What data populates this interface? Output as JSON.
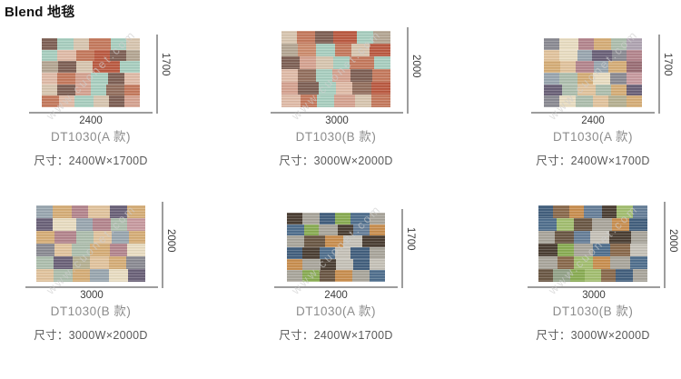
{
  "page": {
    "title": "Blend 地毯",
    "watermark": "www.cuonet.com",
    "background": "#ffffff",
    "line_color": "#9d9d9d"
  },
  "palettes": {
    "warm": [
      "#a9cfc0",
      "#8cc2af",
      "#c57a5e",
      "#bb5b42",
      "#cd8d6f",
      "#d6a391",
      "#e0bca8",
      "#d8c6b0",
      "#c4ab92",
      "#7f6156",
      "#94705f",
      "#b5a794"
    ],
    "muted": [
      "#e9ddc2",
      "#d6ae78",
      "#e2c49e",
      "#b4868e",
      "#9b6f76",
      "#aebfae",
      "#9aa7b0",
      "#8b8b93",
      "#6b6279",
      "#b0a4b2",
      "#b6b192",
      "#c89ba0"
    ],
    "forest": [
      "#8aad54",
      "#a3bf71",
      "#51708e",
      "#677f99",
      "#43607e",
      "#6b5845",
      "#4c3f34",
      "#8a6a4d",
      "#c98f50",
      "#aaa69c",
      "#c6c2b8",
      "#93a289"
    ]
  },
  "products": [
    {
      "name": "DT1030(A 款)",
      "size_label": "尺寸：2400W×1700D",
      "width_label": "2400",
      "height_label": "1700",
      "variant": "A",
      "palette": "warm",
      "pattern": [
        [
          [
            9,
            1
          ],
          [
            0,
            1.1
          ],
          [
            7,
            1
          ],
          [
            2,
            1.4
          ],
          [
            0,
            1
          ],
          [
            7,
            0.9
          ]
        ],
        [
          [
            0,
            1
          ],
          [
            6,
            1.2
          ],
          [
            2,
            1.2
          ],
          [
            3,
            1
          ],
          [
            9,
            1
          ],
          [
            11,
            0.9
          ]
        ],
        [
          [
            11,
            1
          ],
          [
            9,
            1.1
          ],
          [
            7,
            1
          ],
          [
            3,
            1.7
          ],
          [
            0,
            1.2
          ]
        ],
        [
          [
            6,
            1
          ],
          [
            2,
            1.1
          ],
          [
            5,
            1
          ],
          [
            0,
            1.1
          ],
          [
            9,
            1
          ],
          [
            6,
            1
          ]
        ],
        [
          [
            7,
            1
          ],
          [
            9,
            1.2
          ],
          [
            5,
            1
          ],
          [
            0,
            1
          ],
          [
            10,
            1.2
          ],
          [
            2,
            1
          ]
        ],
        [
          [
            2,
            1.1
          ],
          [
            6,
            1
          ],
          [
            0,
            1.2
          ],
          [
            7,
            1
          ],
          [
            9,
            1
          ],
          [
            5,
            1
          ]
        ]
      ]
    },
    {
      "name": "DT1030(B 款)",
      "size_label": "尺寸：3000W×2000D",
      "width_label": "3000",
      "height_label": "2000",
      "variant": "B",
      "palette": "warm",
      "pattern": [
        [
          [
            7,
            1
          ],
          [
            2,
            1.1
          ],
          [
            9,
            1.2
          ],
          [
            3,
            1.5
          ],
          [
            0,
            1
          ],
          [
            11,
            1.1
          ]
        ],
        [
          [
            11,
            1
          ],
          [
            4,
            1.1
          ],
          [
            0,
            1.2
          ],
          [
            2,
            1
          ],
          [
            7,
            1.1
          ],
          [
            3,
            1.3
          ]
        ],
        [
          [
            9,
            1.1
          ],
          [
            5,
            1
          ],
          [
            7,
            1.1
          ],
          [
            0,
            1
          ],
          [
            2,
            1.5
          ],
          [
            0,
            1
          ]
        ],
        [
          [
            6,
            1
          ],
          [
            10,
            1.1
          ],
          [
            0,
            1
          ],
          [
            5,
            1.1
          ],
          [
            9,
            1.3
          ],
          [
            2,
            1.1
          ]
        ],
        [
          [
            5,
            1
          ],
          [
            9,
            1.3
          ],
          [
            0,
            1.1
          ],
          [
            6,
            1
          ],
          [
            10,
            1.2
          ],
          [
            3,
            1.2
          ]
        ],
        [
          [
            6,
            1.1
          ],
          [
            2,
            1
          ],
          [
            0,
            1
          ],
          [
            5,
            1.2
          ],
          [
            7,
            1
          ],
          [
            2,
            1.1
          ]
        ]
      ]
    },
    {
      "name": "DT1030(A 款)",
      "size_label": "尺寸：2400W×1700D",
      "width_label": "2400",
      "height_label": "1700",
      "variant": "A",
      "palette": "muted",
      "pattern": [
        [
          [
            7,
            1
          ],
          [
            0,
            1.2
          ],
          [
            3,
            1
          ],
          [
            1,
            1.1
          ],
          [
            5,
            1
          ],
          [
            9,
            1
          ]
        ],
        [
          [
            2,
            1
          ],
          [
            0,
            1.2
          ],
          [
            6,
            1
          ],
          [
            8,
            1.3
          ],
          [
            7,
            1
          ],
          [
            3,
            1
          ]
        ],
        [
          [
            1,
            1.1
          ],
          [
            2,
            1
          ],
          [
            3,
            1.2
          ],
          [
            6,
            1
          ],
          [
            1,
            1.2
          ],
          [
            4,
            1
          ]
        ],
        [
          [
            6,
            1
          ],
          [
            5,
            1.1
          ],
          [
            1,
            1
          ],
          [
            0,
            1.1
          ],
          [
            7,
            1
          ],
          [
            11,
            1
          ]
        ],
        [
          [
            8,
            1.2
          ],
          [
            5,
            1
          ],
          [
            2,
            1.2
          ],
          [
            5,
            1
          ],
          [
            1,
            1
          ],
          [
            8,
            1
          ]
        ],
        [
          [
            7,
            1
          ],
          [
            0,
            1.1
          ],
          [
            5,
            1.1
          ],
          [
            2,
            1
          ],
          [
            10,
            1.2
          ],
          [
            1,
            1
          ]
        ]
      ]
    },
    {
      "name": "DT1030(B 款)",
      "size_label": "尺寸：3000W×2000D",
      "width_label": "3000",
      "height_label": "2000",
      "variant": "B",
      "palette": "muted",
      "pattern": [
        [
          [
            6,
            1
          ],
          [
            1,
            1.1
          ],
          [
            3,
            1
          ],
          [
            2,
            1.3
          ],
          [
            8,
            1
          ],
          [
            1,
            1.1
          ]
        ],
        [
          [
            8,
            1
          ],
          [
            0,
            1.4
          ],
          [
            6,
            1
          ],
          [
            3,
            1.1
          ],
          [
            5,
            1
          ],
          [
            11,
            1.1
          ]
        ],
        [
          [
            1,
            1.1
          ],
          [
            3,
            1.3
          ],
          [
            5,
            1
          ],
          [
            2,
            1.1
          ],
          [
            6,
            1
          ],
          [
            1,
            1
          ]
        ],
        [
          [
            7,
            1.1
          ],
          [
            2,
            1
          ],
          [
            5,
            1.1
          ],
          [
            1,
            1.2
          ],
          [
            3,
            1
          ],
          [
            0,
            1.1
          ]
        ],
        [
          [
            5,
            1
          ],
          [
            8,
            1.1
          ],
          [
            10,
            1
          ],
          [
            2,
            1.1
          ],
          [
            1,
            1
          ],
          [
            7,
            1.1
          ]
        ],
        [
          [
            2,
            1
          ],
          [
            5,
            1.1
          ],
          [
            1,
            1
          ],
          [
            6,
            1.1
          ],
          [
            0,
            1.1
          ],
          [
            8,
            1
          ]
        ]
      ]
    },
    {
      "name": "DT1030(A 款)",
      "size_label": "尺寸：2400W×1700D",
      "width_label": "2400",
      "height_label": "1700",
      "variant": "A",
      "palette": "forest",
      "pattern": [
        [
          [
            6,
            1
          ],
          [
            9,
            1.1
          ],
          [
            4,
            1
          ],
          [
            0,
            1
          ],
          [
            2,
            1.2
          ],
          [
            9,
            1
          ]
        ],
        [
          [
            2,
            1.1
          ],
          [
            0,
            1
          ],
          [
            9,
            1.2
          ],
          [
            6,
            1
          ],
          [
            3,
            1.1
          ],
          [
            8,
            1
          ]
        ],
        [
          [
            9,
            1
          ],
          [
            5,
            1.2
          ],
          [
            8,
            1
          ],
          [
            10,
            1.1
          ],
          [
            6,
            1.3
          ]
        ],
        [
          [
            4,
            1
          ],
          [
            6,
            1.1
          ],
          [
            2,
            1
          ],
          [
            10,
            1
          ],
          [
            4,
            1.2
          ],
          [
            9,
            1
          ]
        ],
        [
          [
            8,
            1
          ],
          [
            9,
            1.1
          ],
          [
            6,
            1
          ],
          [
            10,
            1.1
          ],
          [
            4,
            1
          ],
          [
            10,
            1
          ]
        ],
        [
          [
            9,
            1
          ],
          [
            0,
            1.1
          ],
          [
            5,
            1
          ],
          [
            8,
            1.1
          ],
          [
            9,
            1.1
          ],
          [
            2,
            1
          ]
        ]
      ]
    },
    {
      "name": "DT1030(B 款)",
      "size_label": "尺寸：3000W×2000D",
      "width_label": "3000",
      "height_label": "2000",
      "variant": "B",
      "palette": "forest",
      "pattern": [
        [
          [
            4,
            1
          ],
          [
            7,
            1.1
          ],
          [
            8,
            1
          ],
          [
            3,
            1.2
          ],
          [
            6,
            1
          ],
          [
            1,
            1.1
          ],
          [
            3,
            1
          ]
        ],
        [
          [
            2,
            1.1
          ],
          [
            1,
            1
          ],
          [
            5,
            1.1
          ],
          [
            9,
            1.2
          ],
          [
            8,
            1
          ],
          [
            4,
            1.1
          ]
        ],
        [
          [
            9,
            1
          ],
          [
            5,
            1.1
          ],
          [
            3,
            1
          ],
          [
            10,
            1.1
          ],
          [
            6,
            1.3
          ],
          [
            9,
            1
          ]
        ],
        [
          [
            6,
            1.1
          ],
          [
            0,
            1
          ],
          [
            9,
            1.1
          ],
          [
            2,
            1
          ],
          [
            7,
            1.2
          ],
          [
            10,
            1
          ]
        ],
        [
          [
            9,
            1.1
          ],
          [
            7,
            1
          ],
          [
            1,
            1.1
          ],
          [
            8,
            1
          ],
          [
            9,
            1.2
          ],
          [
            2,
            1
          ]
        ],
        [
          [
            5,
            1
          ],
          [
            11,
            1.1
          ],
          [
            0,
            1
          ],
          [
            1,
            1.1
          ],
          [
            7,
            1
          ],
          [
            4,
            1.1
          ],
          [
            9,
            1
          ]
        ]
      ]
    }
  ]
}
